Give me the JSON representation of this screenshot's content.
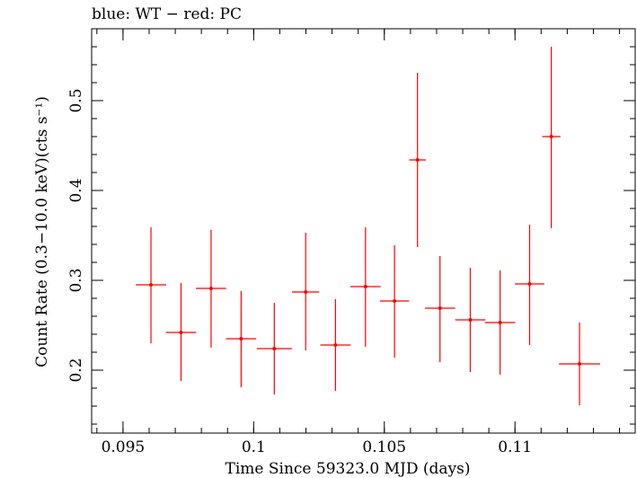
{
  "chart_data": {
    "type": "scatter",
    "title": "blue: WT − red: PC",
    "xlabel": "Time Since 59323.0 MJD (days)",
    "ylabel": "Count Rate (0.3−10.0 keV)(cts s⁻¹)",
    "xlim": [
      0.0938,
      0.1146
    ],
    "ylim": [
      0.13,
      0.58
    ],
    "x_ticks": [
      {
        "value": 0.095,
        "label": "0.095"
      },
      {
        "value": 0.1,
        "label": "0.1"
      },
      {
        "value": 0.105,
        "label": "0.105"
      },
      {
        "value": 0.11,
        "label": "0.11"
      }
    ],
    "y_ticks": [
      {
        "value": 0.2,
        "label": "0.2"
      },
      {
        "value": 0.3,
        "label": "0.3"
      },
      {
        "value": 0.4,
        "label": "0.4"
      },
      {
        "value": 0.5,
        "label": "0.5"
      }
    ],
    "x_minor_step": 0.001,
    "y_minor_step": 0.02,
    "grid": false,
    "series": [
      {
        "color": "#ff0000",
        "points": [
          {
            "x": 0.09607,
            "xerr": 0.00058,
            "y": 0.295,
            "ylo": 0.23,
            "yhi": 0.359
          },
          {
            "x": 0.09722,
            "xerr": 0.00058,
            "y": 0.242,
            "ylo": 0.188,
            "yhi": 0.297
          },
          {
            "x": 0.09837,
            "xerr": 0.00058,
            "y": 0.291,
            "ylo": 0.225,
            "yhi": 0.356
          },
          {
            "x": 0.09952,
            "xerr": 0.00058,
            "y": 0.235,
            "ylo": 0.181,
            "yhi": 0.288
          },
          {
            "x": 0.10079,
            "xerr": 0.00067,
            "y": 0.224,
            "ylo": 0.173,
            "yhi": 0.275
          },
          {
            "x": 0.10199,
            "xerr": 0.00052,
            "y": 0.287,
            "ylo": 0.222,
            "yhi": 0.353
          },
          {
            "x": 0.10313,
            "xerr": 0.00058,
            "y": 0.228,
            "ylo": 0.177,
            "yhi": 0.279
          },
          {
            "x": 0.10428,
            "xerr": 0.00058,
            "y": 0.293,
            "ylo": 0.226,
            "yhi": 0.359
          },
          {
            "x": 0.10539,
            "xerr": 0.00056,
            "y": 0.277,
            "ylo": 0.214,
            "yhi": 0.339
          },
          {
            "x": 0.10627,
            "xerr": 0.00032,
            "y": 0.434,
            "ylo": 0.337,
            "yhi": 0.531
          },
          {
            "x": 0.10713,
            "xerr": 0.00058,
            "y": 0.269,
            "ylo": 0.209,
            "yhi": 0.327
          },
          {
            "x": 0.10829,
            "xerr": 0.00058,
            "y": 0.256,
            "ylo": 0.198,
            "yhi": 0.314
          },
          {
            "x": 0.10943,
            "xerr": 0.00058,
            "y": 0.253,
            "ylo": 0.195,
            "yhi": 0.311
          },
          {
            "x": 0.11056,
            "xerr": 0.00056,
            "y": 0.296,
            "ylo": 0.228,
            "yhi": 0.362
          },
          {
            "x": 0.11139,
            "xerr": 0.00035,
            "y": 0.46,
            "ylo": 0.358,
            "yhi": 0.56
          },
          {
            "x": 0.11247,
            "xerr": 0.00079,
            "y": 0.207,
            "ylo": 0.161,
            "yhi": 0.253
          }
        ]
      }
    ]
  }
}
